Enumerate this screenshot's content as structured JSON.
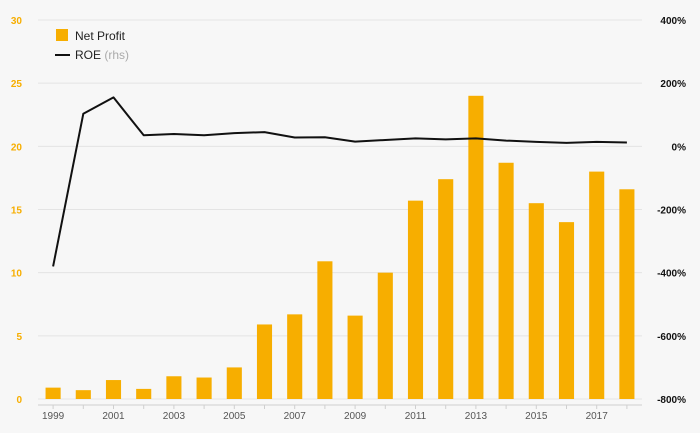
{
  "colors": {
    "bar": "#f7ae00",
    "line": "#111111",
    "grid": "#e4e4e4",
    "left_axis_text": "#f7ae00",
    "right_axis_text": "#111111"
  },
  "legend": {
    "bar_label": "Net Profit",
    "line_label": "ROE",
    "line_suffix": "(rhs)"
  },
  "chart_data": {
    "type": "bar",
    "x": [
      1999,
      2000,
      2001,
      2002,
      2003,
      2004,
      2005,
      2006,
      2007,
      2008,
      2009,
      2010,
      2011,
      2012,
      2013,
      2014,
      2015,
      2016,
      2017,
      2018
    ],
    "x_tick_labels": [
      "1999",
      "2001",
      "2003",
      "2005",
      "2007",
      "2009",
      "2011",
      "2013",
      "2015",
      "2017"
    ],
    "series": [
      {
        "name": "Net Profit",
        "type": "bar",
        "axis": "left",
        "values": [
          0.9,
          0.7,
          1.5,
          0.8,
          1.8,
          1.7,
          2.5,
          5.9,
          6.7,
          10.9,
          6.6,
          10.0,
          15.7,
          17.4,
          24.0,
          18.7,
          15.5,
          14.0,
          18.0,
          16.6
        ]
      },
      {
        "name": "ROE",
        "type": "line",
        "axis": "right",
        "values": [
          -380,
          103,
          155,
          35,
          39,
          35,
          42,
          45,
          28,
          29,
          15,
          20,
          25,
          22,
          25,
          18,
          14,
          11,
          14,
          12
        ]
      }
    ],
    "left_axis": {
      "ylim": [
        0,
        30
      ],
      "ticks": [
        "0",
        "5",
        "10",
        "15",
        "20",
        "25",
        "30"
      ]
    },
    "right_axis": {
      "ylim": [
        -800,
        400
      ],
      "ticks": [
        "-800%",
        "-600%",
        "-400%",
        "-200%",
        "0%",
        "200%",
        "400%"
      ]
    },
    "grid": true,
    "legend_position": "top-left"
  }
}
